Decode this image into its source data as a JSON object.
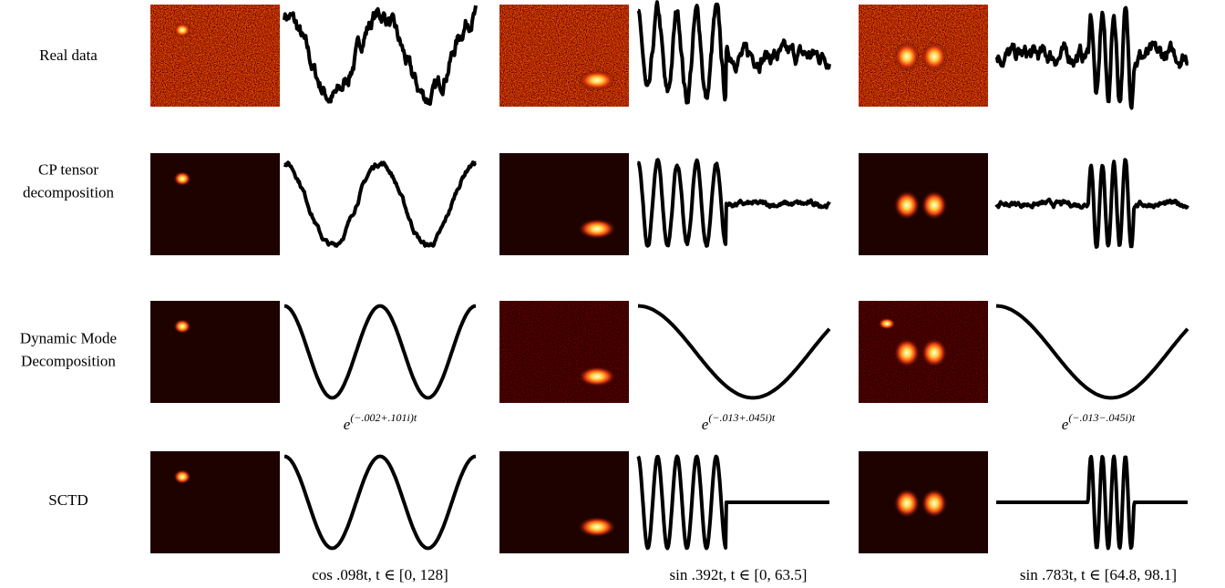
{
  "rows": [
    {
      "label_lines": [
        "Real data"
      ]
    },
    {
      "label_lines": [
        "CP tensor",
        "decomposition"
      ]
    },
    {
      "label_lines": [
        "Dynamic Mode",
        "Decomposition"
      ]
    },
    {
      "label_lines": [
        "SCTD"
      ]
    }
  ],
  "dmd_captions": [
    {
      "base": "e",
      "exponent": "(−.002+.101i)t"
    },
    {
      "base": "e",
      "exponent": "(−.013+.045i)t"
    },
    {
      "base": "e",
      "exponent": "(−.013−.045i)t"
    }
  ],
  "sctd_captions": [
    "cos .098t, t ∈ [0, 128]",
    "sin .392t, t ∈ [0, 63.5]",
    "sin .783t, t ∈ [64.8, 98.1]"
  ]
}
